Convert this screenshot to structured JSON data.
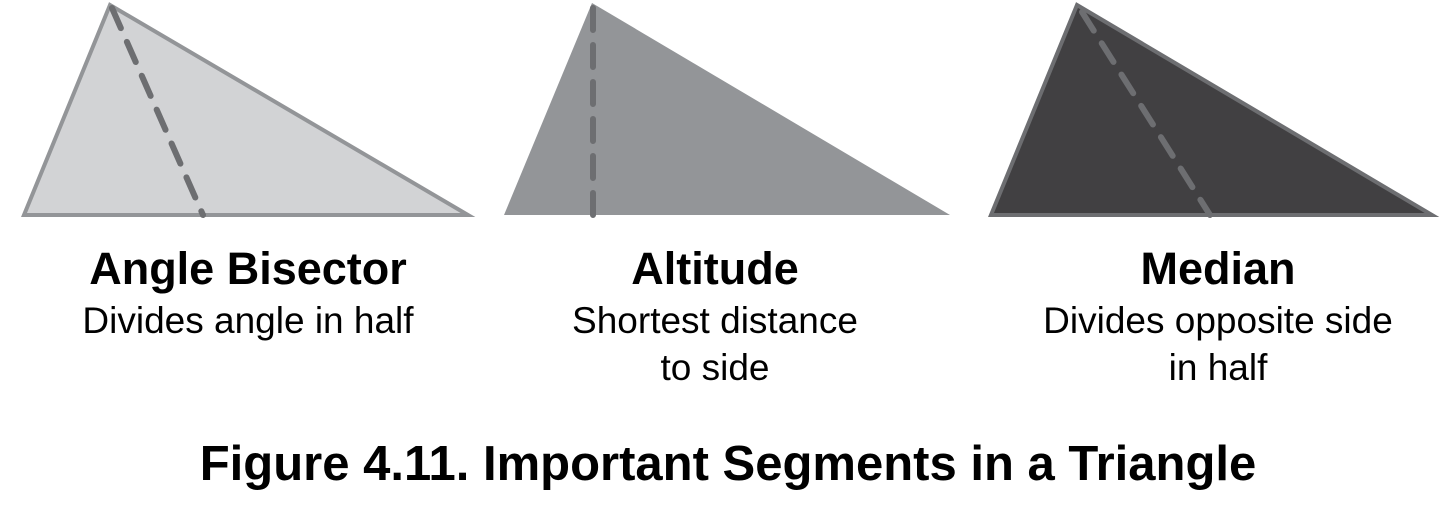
{
  "panels": [
    {
      "title": "Angle Bisector",
      "description": "Divides angle in half",
      "fill_color": "#d2d3d5",
      "stroke_color": "#939598"
    },
    {
      "title": "Altitude",
      "description_lines": [
        "Shortest distance",
        "to side"
      ],
      "fill_color": "#939598"
    },
    {
      "title": "Median",
      "description_lines": [
        "Divides opposite side",
        "in half"
      ],
      "fill_color": "#414042",
      "stroke_color": "#6d6e71"
    }
  ],
  "segment_color": "#6d6e71",
  "caption": "Figure 4.11. Important Segments in a Triangle"
}
